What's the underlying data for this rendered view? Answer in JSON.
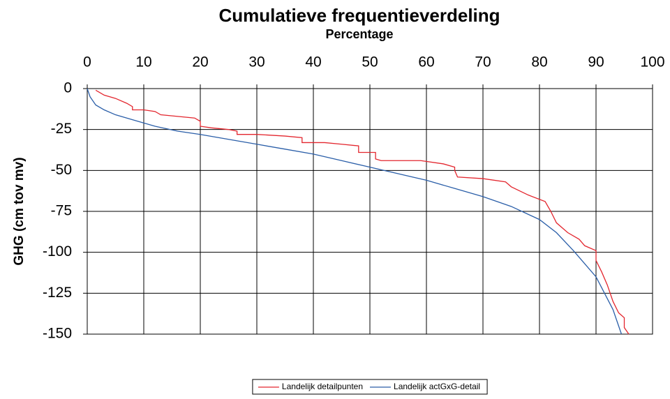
{
  "chart_data": {
    "type": "line",
    "title": "Cumulatieve frequentieverdeling",
    "xlabel": "Percentage",
    "ylabel": "GHG (cm tov mv)",
    "xlim": [
      0,
      100
    ],
    "xticks": [
      0,
      10,
      20,
      30,
      40,
      50,
      60,
      70,
      80,
      90,
      100
    ],
    "ylim": [
      -150,
      0
    ],
    "yticks": [
      0,
      -25,
      -50,
      -75,
      -100,
      -125,
      -150
    ],
    "grid": true,
    "legend": "bottom",
    "series": [
      {
        "name": "Landelijk detailpunten",
        "color": "#e3262e",
        "x": [
          1.5,
          3,
          5,
          7,
          8,
          8,
          10,
          12,
          13,
          16,
          19,
          20,
          20,
          22,
          25,
          26.5,
          26.5,
          30,
          35,
          38,
          38,
          42,
          45,
          48,
          48,
          51,
          51,
          52,
          59,
          63,
          65,
          65,
          65.5,
          70,
          74,
          75,
          78,
          81,
          82,
          83,
          85,
          87,
          88,
          90,
          90,
          91,
          92,
          93,
          94,
          95,
          95,
          95.8
        ],
        "values": [
          -1,
          -4,
          -6,
          -9,
          -11,
          -13,
          -13,
          -14,
          -16,
          -17,
          -18,
          -20,
          -23,
          -24,
          -25,
          -26,
          -28,
          -28,
          -29,
          -30,
          -33,
          -33,
          -34,
          -35,
          -39,
          -39,
          -43,
          -44,
          -44,
          -46,
          -48,
          -50,
          -54,
          -55,
          -57,
          -60,
          -65,
          -69,
          -75,
          -82,
          -88,
          -92,
          -96,
          -99,
          -105,
          -112,
          -120,
          -130,
          -137,
          -140,
          -146,
          -150
        ]
      },
      {
        "name": "Landelijk actGxG-detail",
        "color": "#2a5ea8",
        "x": [
          0,
          0.5,
          1.5,
          3,
          5,
          8,
          12,
          16,
          20,
          25,
          30,
          35,
          40,
          45,
          50,
          55,
          60,
          65,
          70,
          75,
          80,
          83,
          86,
          88,
          90,
          91.5,
          93,
          94,
          94.5
        ],
        "values": [
          0,
          -5,
          -10,
          -13,
          -16,
          -19,
          -23,
          -26,
          -28,
          -31,
          -34,
          -37,
          -40,
          -44,
          -48,
          -52,
          -56,
          -61,
          -66,
          -72,
          -80,
          -88,
          -99,
          -107,
          -115,
          -125,
          -135,
          -145,
          -150
        ]
      }
    ]
  }
}
